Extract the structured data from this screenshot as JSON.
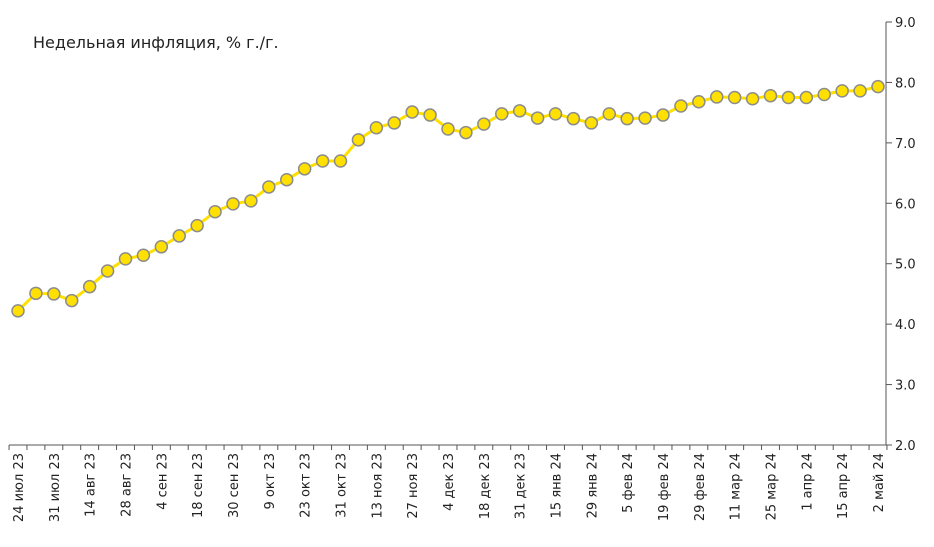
{
  "chart_data": {
    "type": "line",
    "title": "Недельная инфляция, % г./г.",
    "categories": [
      "24 июл 23",
      null,
      "31 июл 23",
      null,
      "14 авг 23",
      null,
      "28 авг 23",
      null,
      "4 сен 23",
      null,
      "18 сен 23",
      null,
      "30 сен 23",
      null,
      "9 окт 23",
      null,
      "23 окт 23",
      null,
      "31 окт 23",
      null,
      "13 ноя 23",
      null,
      "27 ноя 23",
      null,
      "4 дек 23",
      null,
      "18 дек 23",
      null,
      "31 дек 23",
      null,
      "15 янв 24",
      null,
      "29 янв 24",
      null,
      "5 фев 24",
      null,
      "19 фев 24",
      null,
      "29 фев 24",
      null,
      "11 мар 24",
      null,
      "25 мар 24",
      null,
      "1 апр 24",
      null,
      "15 апр 24",
      null,
      "2 май 24"
    ],
    "series": [
      {
        "name": "Недельная инфляция",
        "color": "#ffe000",
        "marker_edge": "#8c8c8c",
        "values": [
          4.22,
          4.51,
          4.5,
          4.39,
          4.62,
          4.88,
          5.08,
          5.14,
          5.28,
          5.46,
          5.63,
          5.86,
          5.99,
          6.04,
          6.27,
          6.39,
          6.57,
          6.7,
          6.7,
          7.05,
          7.25,
          7.33,
          7.51,
          7.46,
          7.23,
          7.17,
          7.31,
          7.48,
          7.53,
          7.41,
          7.48,
          7.4,
          7.33,
          7.48,
          7.4,
          7.41,
          7.46,
          7.61,
          7.68,
          7.76,
          7.75,
          7.73,
          7.78,
          7.75,
          7.75,
          7.8,
          7.86,
          7.86,
          7.93
        ]
      }
    ],
    "ylim": [
      2.0,
      9.0
    ],
    "yticks": [
      {
        "value": 2,
        "label": "2.0"
      },
      {
        "value": 3,
        "label": "3.0"
      },
      {
        "value": 4,
        "label": "4.0"
      },
      {
        "value": 5,
        "label": "5.0"
      },
      {
        "value": 6,
        "label": "6.0"
      },
      {
        "value": 7,
        "label": "7.0"
      },
      {
        "value": 8,
        "label": "8.0"
      },
      {
        "value": 9,
        "label": "9.0"
      }
    ],
    "y_axis_side": "right"
  }
}
